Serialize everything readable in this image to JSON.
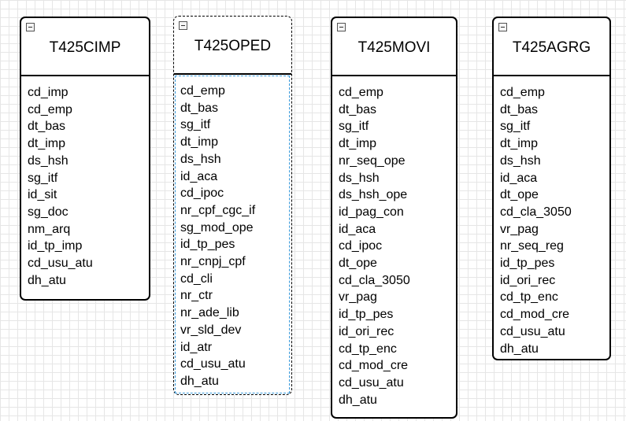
{
  "tables": [
    {
      "id": "t425cimp",
      "title": "T425CIMP",
      "selected": false,
      "fields": [
        "cd_imp",
        "cd_emp",
        "dt_bas",
        "dt_imp",
        "ds_hsh",
        "sg_itf",
        "id_sit",
        "sg_doc",
        "nm_arq",
        "id_tp_imp",
        "cd_usu_atu",
        "dh_atu"
      ]
    },
    {
      "id": "t425oped",
      "title": "T425OPED",
      "selected": true,
      "fields": [
        "cd_emp",
        "dt_bas",
        "sg_itf",
        "dt_imp",
        "ds_hsh",
        "id_aca",
        "cd_ipoc",
        "nr_cpf_cgc_if",
        "sg_mod_ope",
        "id_tp_pes",
        "nr_cnpj_cpf",
        "cd_cli",
        "nr_ctr",
        "nr_ade_lib",
        "vr_sld_dev",
        "id_atr",
        "cd_usu_atu",
        "dh_atu"
      ]
    },
    {
      "id": "t425movi",
      "title": "T425MOVI",
      "selected": false,
      "fields": [
        "cd_emp",
        "dt_bas",
        "sg_itf",
        "dt_imp",
        "nr_seq_ope",
        "ds_hsh",
        "ds_hsh_ope",
        "id_pag_con",
        "id_aca",
        "cd_ipoc",
        "dt_ope",
        "cd_cla_3050",
        "vr_pag",
        "id_tp_pes",
        "id_ori_rec",
        "cd_tp_enc",
        "cd_mod_cre",
        "cd_usu_atu",
        "dh_atu"
      ]
    },
    {
      "id": "t425agrg",
      "title": "T425AGRG",
      "selected": false,
      "fields": [
        "cd_emp",
        "dt_bas",
        "sg_itf",
        "dt_imp",
        "ds_hsh",
        "id_aca",
        "dt_ope",
        "cd_cla_3050",
        "vr_pag",
        "nr_seq_reg",
        "id_tp_pes",
        "id_ori_rec",
        "cd_tp_enc",
        "cd_mod_cre",
        "cd_usu_atu",
        "dh_atu"
      ]
    }
  ]
}
